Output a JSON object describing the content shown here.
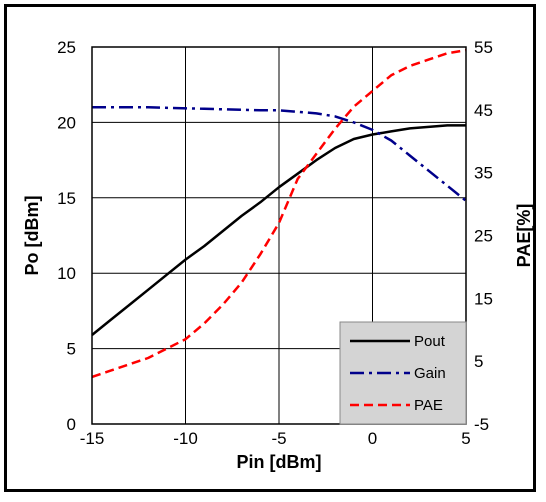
{
  "chart_data": {
    "type": "line",
    "title": "",
    "xlabel": "Pin [dBm]",
    "ylabel_left": "Po [dBm]",
    "ylabel_right": "PAE[%]",
    "xlim": [
      -15,
      5
    ],
    "ylim_left": [
      0,
      25
    ],
    "ylim_right": [
      -5,
      55
    ],
    "x_ticks": [
      -15,
      -10,
      -5,
      0,
      5
    ],
    "y_ticks_left": [
      0,
      5,
      10,
      15,
      20,
      25
    ],
    "y_ticks_right": [
      -5,
      5,
      15,
      25,
      35,
      45,
      55
    ],
    "grid": true,
    "legend_position": "bottom-right",
    "series": [
      {
        "name": "Pout",
        "axis": "left",
        "color": "#000000",
        "dash": "solid",
        "x": [
          -15,
          -14,
          -13,
          -12,
          -11,
          -10,
          -9,
          -8,
          -7,
          -6,
          -5,
          -4,
          -3,
          -2,
          -1,
          0,
          1,
          2,
          3,
          4,
          5
        ],
        "y": [
          5.9,
          6.9,
          7.9,
          8.9,
          9.9,
          10.9,
          11.8,
          12.8,
          13.8,
          14.7,
          15.7,
          16.6,
          17.5,
          18.3,
          18.9,
          19.2,
          19.4,
          19.6,
          19.7,
          19.8,
          19.8
        ]
      },
      {
        "name": "Gain",
        "axis": "left",
        "color": "#00008b",
        "dash": "dashdot",
        "x": [
          -15,
          -12,
          -9,
          -6,
          -5,
          -4,
          -3,
          -2,
          -1,
          0,
          1,
          2,
          3,
          4,
          5
        ],
        "y": [
          21.0,
          21.0,
          20.9,
          20.8,
          20.8,
          20.7,
          20.6,
          20.4,
          20.0,
          19.5,
          18.8,
          17.8,
          16.8,
          15.8,
          14.8
        ]
      },
      {
        "name": "PAE",
        "axis": "right",
        "color": "#ff0000",
        "dash": "dashed",
        "x": [
          -15,
          -14,
          -13,
          -12,
          -11,
          -10,
          -9,
          -8,
          -7,
          -6,
          -5,
          -4,
          -3,
          -2,
          -1,
          0,
          1,
          2,
          3,
          4,
          5
        ],
        "y": [
          2.5,
          3.5,
          4.5,
          5.5,
          7.0,
          8.5,
          11.0,
          14.0,
          17.5,
          22.0,
          27.0,
          34.0,
          38.0,
          42.0,
          45.5,
          48.0,
          50.5,
          52.0,
          53.0,
          54.0,
          54.5
        ]
      }
    ]
  }
}
